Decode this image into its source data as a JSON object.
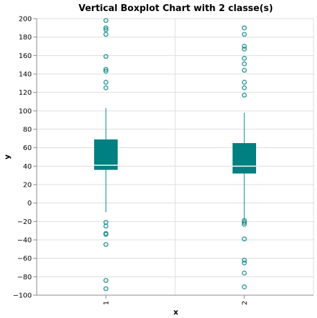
{
  "chart_data": {
    "type": "boxplot",
    "title": "Vertical Boxplot Chart with 2 classe(s)",
    "xlabel": "x",
    "ylabel": "y",
    "ylim": [
      -100,
      200
    ],
    "yticks": [
      -100,
      -80,
      -60,
      -40,
      -20,
      0,
      20,
      40,
      60,
      80,
      100,
      120,
      140,
      160,
      180,
      200
    ],
    "grid": true,
    "categories": [
      "1",
      "2"
    ],
    "color": "#008080",
    "series": [
      {
        "category": "1",
        "whisker_low": -10,
        "q1": 36,
        "median": 41,
        "q3": 69,
        "whisker_high": 103,
        "outliers": [
          198,
          190,
          188,
          183,
          159,
          145,
          143,
          131,
          125,
          -21,
          -25,
          -33,
          -34,
          -45,
          -84,
          -93
        ]
      },
      {
        "category": "2",
        "whisker_low": -19,
        "q1": 32,
        "median": 40,
        "q3": 65,
        "whisker_high": 98,
        "outliers": [
          190,
          183,
          170,
          167,
          157,
          151,
          144,
          131,
          125,
          117,
          -19,
          -21,
          -23,
          -39,
          -62,
          -65,
          -76,
          -91
        ]
      }
    ]
  }
}
